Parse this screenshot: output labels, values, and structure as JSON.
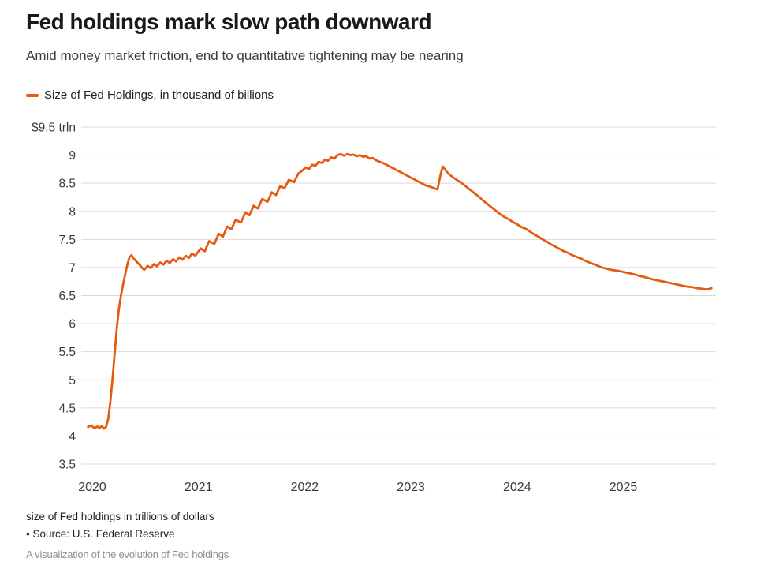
{
  "header": {
    "title": "Fed holdings mark slow path downward",
    "subtitle": "Amid money market friction, end to quantitative tightening may be nearing"
  },
  "legend": {
    "series_label": "Size of Fed Holdings, in thousand of billions"
  },
  "footer": {
    "note": "size of Fed holdings in trillions of dollars",
    "source": "• Source: U.S. Federal Reserve",
    "caption": "A visualization of the evolution of Fed holdings"
  },
  "colors": {
    "line": "#E55A0F",
    "grid": "#d9d9d9",
    "axis_text": "#3a3a3a",
    "title_text": "#1a1a1a",
    "subtitle_text": "#3c3c3c",
    "caption_text": "#8f8f8f"
  },
  "chart_data": {
    "type": "line",
    "title": "Size of Fed Holdings, in thousand of billions",
    "unit": "trillions of US dollars",
    "xlabel": "",
    "ylabel": "",
    "grid": "horizontal",
    "legend_position": "top-left",
    "x_tick_labels": [
      "2020",
      "2021",
      "2022",
      "2023",
      "2024",
      "2025"
    ],
    "x_tick_values": [
      2020,
      2021,
      2022,
      2023,
      2024,
      2025
    ],
    "y_tick_labels": [
      "$9.5 trln",
      "9",
      "8.5",
      "8",
      "7.5",
      "7",
      "6.5",
      "6",
      "5.5",
      "5",
      "4.5",
      "4",
      "3.5"
    ],
    "y_tick_values": [
      9.5,
      9,
      8.5,
      8,
      7.5,
      7,
      6.5,
      6,
      5.5,
      5,
      4.5,
      4,
      3.5
    ],
    "x_range": [
      2019.96,
      2025.88
    ],
    "y_range": [
      3.5,
      9.5
    ],
    "series": [
      {
        "name": "Size of Fed Holdings, in thousand of billions",
        "color": "#E55A0F",
        "points": [
          [
            2019.96,
            4.16
          ],
          [
            2019.99,
            4.19
          ],
          [
            2020.02,
            4.14
          ],
          [
            2020.05,
            4.17
          ],
          [
            2020.07,
            4.14
          ],
          [
            2020.09,
            4.18
          ],
          [
            2020.11,
            4.13
          ],
          [
            2020.13,
            4.16
          ],
          [
            2020.15,
            4.3
          ],
          [
            2020.17,
            4.6
          ],
          [
            2020.19,
            5.0
          ],
          [
            2020.21,
            5.45
          ],
          [
            2020.23,
            5.9
          ],
          [
            2020.25,
            6.25
          ],
          [
            2020.27,
            6.5
          ],
          [
            2020.29,
            6.7
          ],
          [
            2020.31,
            6.88
          ],
          [
            2020.33,
            7.05
          ],
          [
            2020.35,
            7.18
          ],
          [
            2020.37,
            7.22
          ],
          [
            2020.39,
            7.16
          ],
          [
            2020.42,
            7.1
          ],
          [
            2020.45,
            7.04
          ],
          [
            2020.47,
            6.99
          ],
          [
            2020.49,
            6.96
          ],
          [
            2020.52,
            7.03
          ],
          [
            2020.55,
            6.99
          ],
          [
            2020.58,
            7.06
          ],
          [
            2020.61,
            7.02
          ],
          [
            2020.64,
            7.09
          ],
          [
            2020.67,
            7.05
          ],
          [
            2020.7,
            7.12
          ],
          [
            2020.73,
            7.08
          ],
          [
            2020.76,
            7.15
          ],
          [
            2020.79,
            7.11
          ],
          [
            2020.82,
            7.18
          ],
          [
            2020.85,
            7.14
          ],
          [
            2020.88,
            7.21
          ],
          [
            2020.91,
            7.17
          ],
          [
            2020.94,
            7.25
          ],
          [
            2020.97,
            7.21
          ],
          [
            2021.02,
            7.34
          ],
          [
            2021.06,
            7.29
          ],
          [
            2021.1,
            7.47
          ],
          [
            2021.15,
            7.42
          ],
          [
            2021.19,
            7.6
          ],
          [
            2021.23,
            7.55
          ],
          [
            2021.27,
            7.73
          ],
          [
            2021.31,
            7.68
          ],
          [
            2021.35,
            7.85
          ],
          [
            2021.4,
            7.8
          ],
          [
            2021.44,
            7.98
          ],
          [
            2021.48,
            7.93
          ],
          [
            2021.52,
            8.1
          ],
          [
            2021.56,
            8.05
          ],
          [
            2021.6,
            8.22
          ],
          [
            2021.65,
            8.17
          ],
          [
            2021.69,
            8.34
          ],
          [
            2021.73,
            8.29
          ],
          [
            2021.77,
            8.45
          ],
          [
            2021.81,
            8.41
          ],
          [
            2021.85,
            8.56
          ],
          [
            2021.9,
            8.52
          ],
          [
            2021.94,
            8.67
          ],
          [
            2021.98,
            8.73
          ],
          [
            2022.01,
            8.78
          ],
          [
            2022.04,
            8.75
          ],
          [
            2022.07,
            8.83
          ],
          [
            2022.1,
            8.81
          ],
          [
            2022.13,
            8.88
          ],
          [
            2022.16,
            8.86
          ],
          [
            2022.19,
            8.92
          ],
          [
            2022.22,
            8.9
          ],
          [
            2022.25,
            8.96
          ],
          [
            2022.28,
            8.94
          ],
          [
            2022.31,
            9.0
          ],
          [
            2022.34,
            9.02
          ],
          [
            2022.37,
            8.99
          ],
          [
            2022.4,
            9.02
          ],
          [
            2022.43,
            9.0
          ],
          [
            2022.46,
            9.01
          ],
          [
            2022.49,
            8.98
          ],
          [
            2022.52,
            9.0
          ],
          [
            2022.55,
            8.97
          ],
          [
            2022.58,
            8.98
          ],
          [
            2022.61,
            8.94
          ],
          [
            2022.64,
            8.95
          ],
          [
            2022.67,
            8.91
          ],
          [
            2022.71,
            8.88
          ],
          [
            2022.75,
            8.85
          ],
          [
            2022.79,
            8.81
          ],
          [
            2022.83,
            8.77
          ],
          [
            2022.87,
            8.73
          ],
          [
            2022.91,
            8.69
          ],
          [
            2022.95,
            8.65
          ],
          [
            2022.98,
            8.62
          ],
          [
            2023.02,
            8.58
          ],
          [
            2023.06,
            8.54
          ],
          [
            2023.1,
            8.5
          ],
          [
            2023.14,
            8.46
          ],
          [
            2023.18,
            8.44
          ],
          [
            2023.22,
            8.41
          ],
          [
            2023.25,
            8.39
          ],
          [
            2023.28,
            8.66
          ],
          [
            2023.3,
            8.8
          ],
          [
            2023.33,
            8.72
          ],
          [
            2023.36,
            8.66
          ],
          [
            2023.4,
            8.6
          ],
          [
            2023.44,
            8.55
          ],
          [
            2023.48,
            8.5
          ],
          [
            2023.52,
            8.44
          ],
          [
            2023.56,
            8.38
          ],
          [
            2023.6,
            8.32
          ],
          [
            2023.64,
            8.26
          ],
          [
            2023.68,
            8.19
          ],
          [
            2023.72,
            8.13
          ],
          [
            2023.76,
            8.07
          ],
          [
            2023.8,
            8.01
          ],
          [
            2023.84,
            7.95
          ],
          [
            2023.88,
            7.9
          ],
          [
            2023.92,
            7.86
          ],
          [
            2023.96,
            7.81
          ],
          [
            2024.0,
            7.77
          ],
          [
            2024.04,
            7.72
          ],
          [
            2024.08,
            7.69
          ],
          [
            2024.12,
            7.64
          ],
          [
            2024.16,
            7.59
          ],
          [
            2024.2,
            7.55
          ],
          [
            2024.24,
            7.5
          ],
          [
            2024.28,
            7.46
          ],
          [
            2024.32,
            7.41
          ],
          [
            2024.36,
            7.37
          ],
          [
            2024.4,
            7.33
          ],
          [
            2024.44,
            7.29
          ],
          [
            2024.48,
            7.26
          ],
          [
            2024.52,
            7.22
          ],
          [
            2024.56,
            7.19
          ],
          [
            2024.6,
            7.16
          ],
          [
            2024.64,
            7.12
          ],
          [
            2024.68,
            7.09
          ],
          [
            2024.72,
            7.06
          ],
          [
            2024.76,
            7.03
          ],
          [
            2024.8,
            7.0
          ],
          [
            2024.84,
            6.98
          ],
          [
            2024.88,
            6.96
          ],
          [
            2024.92,
            6.95
          ],
          [
            2024.96,
            6.94
          ],
          [
            2025.0,
            6.92
          ],
          [
            2025.05,
            6.9
          ],
          [
            2025.1,
            6.88
          ],
          [
            2025.15,
            6.85
          ],
          [
            2025.2,
            6.83
          ],
          [
            2025.25,
            6.8
          ],
          [
            2025.3,
            6.78
          ],
          [
            2025.35,
            6.76
          ],
          [
            2025.4,
            6.74
          ],
          [
            2025.45,
            6.72
          ],
          [
            2025.5,
            6.7
          ],
          [
            2025.55,
            6.68
          ],
          [
            2025.6,
            6.66
          ],
          [
            2025.65,
            6.65
          ],
          [
            2025.7,
            6.63
          ],
          [
            2025.75,
            6.62
          ],
          [
            2025.79,
            6.61
          ],
          [
            2025.83,
            6.63
          ]
        ]
      }
    ]
  }
}
